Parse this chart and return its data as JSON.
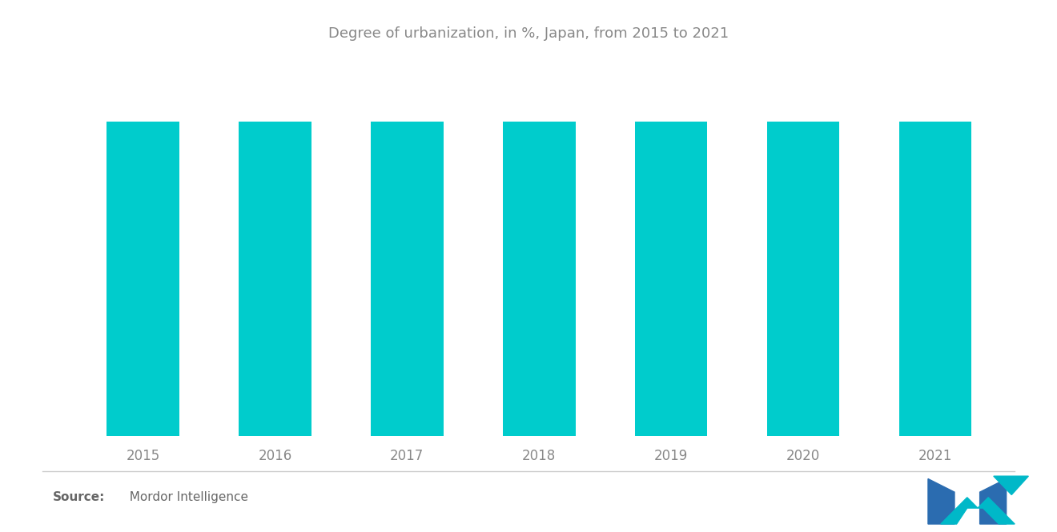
{
  "title": "Degree of urbanization, in %, Japan, from 2015 to 2021",
  "categories": [
    "2015",
    "2016",
    "2017",
    "2018",
    "2019",
    "2020",
    "2021"
  ],
  "values": [
    91.62,
    91.62,
    91.62,
    91.62,
    91.62,
    91.62,
    91.62
  ],
  "bar_color": "#00CCCC",
  "background_color": "#FFFFFF",
  "title_color": "#888888",
  "tick_color": "#888888",
  "title_fontsize": 13,
  "tick_fontsize": 12,
  "source_bold": "Source:",
  "source_text": "  Mordor Intelligence",
  "source_fontsize": 11,
  "ylim_min": 91.0,
  "ylim_max": 91.65,
  "bar_width": 0.55,
  "logo_blue": "#2B6CB0",
  "logo_teal": "#00B8C8"
}
